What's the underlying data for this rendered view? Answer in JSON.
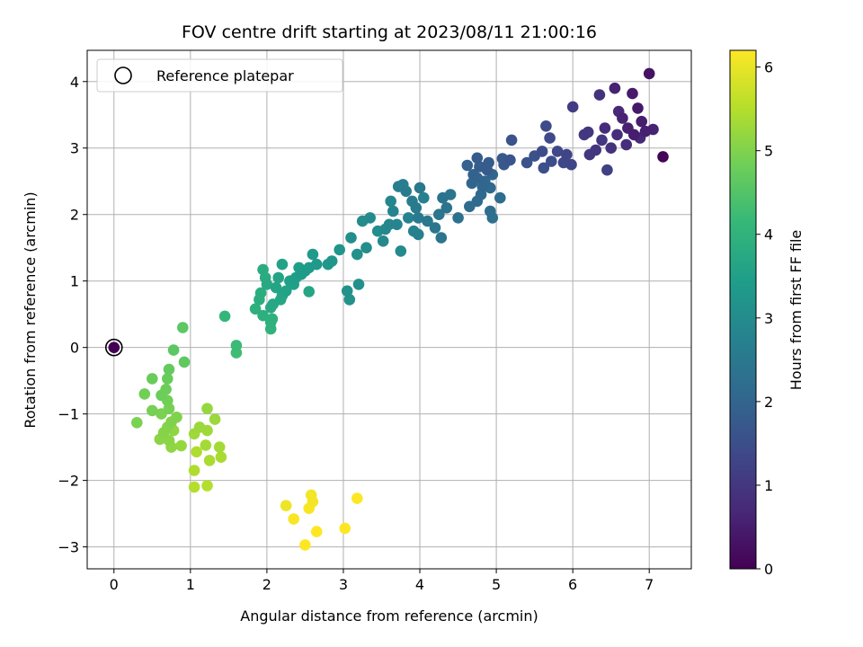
{
  "chart_data": {
    "type": "scatter",
    "title": "FOV centre drift starting at 2023/08/11 21:00:16",
    "xlabel": "Angular distance from reference (arcmin)",
    "ylabel": "Rotation from reference (arcmin)",
    "xlim": [
      -0.35,
      7.55
    ],
    "ylim": [
      -3.33,
      4.47
    ],
    "x_ticks": [
      0,
      1,
      2,
      3,
      4,
      5,
      6,
      7
    ],
    "x_tick_labels": [
      "0",
      "1",
      "2",
      "3",
      "4",
      "5",
      "6",
      "7"
    ],
    "y_ticks": [
      -3,
      -2,
      -1,
      0,
      1,
      2,
      3,
      4
    ],
    "y_tick_labels": [
      "−3",
      "−2",
      "−1",
      "0",
      "1",
      "2",
      "3",
      "4"
    ],
    "grid": true,
    "legend": {
      "position": "top-left",
      "entries": [
        {
          "label": "Reference platepar",
          "marker": "open-circle"
        }
      ]
    },
    "reference_point": {
      "x": 0,
      "y": 0,
      "t": 0
    },
    "colorbar": {
      "label": "Hours from first FF file",
      "colormap": "viridis",
      "range": [
        0,
        6.2
      ],
      "ticks": [
        0,
        1,
        2,
        3,
        4,
        5,
        6
      ],
      "tick_labels": [
        "0",
        "1",
        "2",
        "3",
        "4",
        "5",
        "6"
      ]
    },
    "series": [
      {
        "points": [
          [
            7.18,
            2.87,
            0.05
          ],
          [
            7.0,
            4.12,
            0.3
          ],
          [
            6.78,
            3.82,
            0.45
          ],
          [
            6.85,
            3.6,
            0.4
          ],
          [
            6.9,
            3.4,
            0.5
          ],
          [
            6.95,
            3.25,
            0.55
          ],
          [
            7.05,
            3.28,
            0.6
          ],
          [
            6.8,
            3.2,
            0.5
          ],
          [
            6.72,
            3.3,
            0.55
          ],
          [
            6.65,
            3.45,
            0.6
          ],
          [
            6.88,
            3.15,
            0.7
          ],
          [
            6.6,
            3.55,
            0.7
          ],
          [
            6.7,
            3.05,
            0.8
          ],
          [
            6.58,
            3.2,
            0.8
          ],
          [
            6.55,
            3.9,
            0.6
          ],
          [
            6.42,
            3.3,
            0.8
          ],
          [
            6.35,
            3.8,
            0.9
          ],
          [
            6.5,
            3.0,
            0.9
          ],
          [
            6.3,
            2.97,
            0.95
          ],
          [
            6.38,
            3.12,
            1.0
          ],
          [
            6.22,
            2.9,
            1.0
          ],
          [
            6.2,
            3.24,
            1.0
          ],
          [
            6.15,
            3.2,
            1.05
          ],
          [
            6.0,
            3.62,
            1.1
          ],
          [
            6.45,
            2.67,
            1.2
          ],
          [
            5.98,
            2.75,
            1.3
          ],
          [
            5.92,
            2.9,
            1.3
          ],
          [
            5.88,
            2.78,
            1.35
          ],
          [
            5.8,
            2.95,
            1.35
          ],
          [
            5.7,
            3.15,
            1.4
          ],
          [
            5.65,
            3.33,
            1.4
          ],
          [
            5.72,
            2.8,
            1.45
          ],
          [
            5.6,
            2.95,
            1.45
          ],
          [
            5.62,
            2.7,
            1.5
          ],
          [
            5.5,
            2.88,
            1.55
          ],
          [
            5.4,
            2.78,
            1.6
          ],
          [
            5.2,
            3.12,
            1.6
          ],
          [
            5.18,
            2.82,
            1.65
          ],
          [
            5.1,
            2.75,
            1.7
          ],
          [
            5.08,
            2.84,
            1.75
          ],
          [
            4.9,
            2.78,
            1.8
          ],
          [
            4.88,
            2.67,
            1.8
          ],
          [
            4.75,
            2.85,
            1.8
          ],
          [
            4.78,
            2.72,
            1.85
          ],
          [
            4.62,
            2.74,
            1.9
          ],
          [
            4.7,
            2.6,
            1.95
          ],
          [
            4.75,
            2.55,
            2.0
          ],
          [
            4.68,
            2.47,
            2.0
          ],
          [
            4.82,
            2.42,
            2.05
          ],
          [
            4.95,
            2.6,
            2.0
          ],
          [
            4.85,
            2.5,
            2.05
          ],
          [
            4.92,
            2.4,
            2.1
          ],
          [
            4.8,
            2.3,
            2.1
          ],
          [
            4.75,
            2.2,
            2.15
          ],
          [
            4.65,
            2.12,
            2.15
          ],
          [
            5.05,
            2.25,
            2.2
          ],
          [
            4.92,
            2.05,
            2.25
          ],
          [
            4.95,
            1.95,
            2.3
          ],
          [
            4.5,
            1.95,
            2.3
          ],
          [
            4.35,
            2.1,
            2.35
          ],
          [
            4.3,
            2.25,
            2.35
          ],
          [
            4.4,
            2.3,
            2.4
          ],
          [
            4.25,
            2.0,
            2.4
          ],
          [
            4.2,
            1.8,
            2.45
          ],
          [
            4.28,
            1.65,
            2.45
          ],
          [
            4.1,
            1.9,
            2.5
          ],
          [
            4.0,
            2.4,
            2.5
          ],
          [
            3.98,
            1.95,
            2.55
          ],
          [
            3.95,
            2.1,
            2.55
          ],
          [
            3.9,
            2.2,
            2.6
          ],
          [
            3.82,
            2.35,
            2.6
          ],
          [
            3.78,
            2.45,
            2.65
          ],
          [
            3.72,
            2.42,
            2.65
          ],
          [
            4.05,
            2.25,
            2.7
          ],
          [
            3.98,
            1.7,
            2.7
          ],
          [
            3.92,
            1.75,
            2.75
          ],
          [
            3.85,
            1.95,
            2.75
          ],
          [
            3.7,
            1.85,
            2.8
          ],
          [
            3.65,
            2.05,
            2.8
          ],
          [
            3.62,
            2.2,
            2.85
          ],
          [
            3.6,
            1.85,
            2.85
          ],
          [
            3.55,
            1.78,
            2.9
          ],
          [
            3.52,
            1.6,
            2.9
          ],
          [
            3.75,
            1.45,
            2.95
          ],
          [
            3.35,
            1.95,
            2.95
          ],
          [
            3.25,
            1.9,
            3.0
          ],
          [
            3.45,
            1.75,
            3.0
          ],
          [
            3.1,
            1.65,
            3.05
          ],
          [
            3.3,
            1.5,
            3.05
          ],
          [
            3.18,
            1.4,
            3.1
          ],
          [
            3.2,
            0.95,
            3.1
          ],
          [
            3.05,
            0.85,
            3.15
          ],
          [
            3.08,
            0.72,
            3.15
          ],
          [
            2.95,
            1.47,
            3.2
          ],
          [
            2.85,
            1.3,
            3.25
          ],
          [
            2.8,
            1.25,
            3.3
          ],
          [
            2.65,
            1.25,
            3.3
          ],
          [
            2.6,
            1.4,
            3.35
          ],
          [
            2.55,
            1.2,
            3.35
          ],
          [
            2.5,
            1.15,
            3.4
          ],
          [
            2.45,
            1.1,
            3.4
          ],
          [
            2.42,
            1.2,
            3.45
          ],
          [
            2.38,
            1.05,
            3.45
          ],
          [
            2.3,
            1.0,
            3.5
          ],
          [
            2.35,
            0.95,
            3.5
          ],
          [
            2.25,
            0.85,
            3.55
          ],
          [
            2.2,
            1.25,
            3.55
          ],
          [
            2.15,
            1.05,
            3.6
          ],
          [
            2.12,
            0.9,
            3.6
          ],
          [
            2.55,
            0.84,
            3.65
          ],
          [
            2.2,
            0.78,
            3.65
          ],
          [
            2.18,
            0.72,
            3.7
          ],
          [
            2.08,
            0.65,
            3.7
          ],
          [
            2.05,
            0.6,
            3.75
          ],
          [
            2.0,
            0.95,
            3.75
          ],
          [
            1.95,
            1.17,
            3.8
          ],
          [
            1.98,
            1.05,
            3.8
          ],
          [
            1.92,
            0.82,
            3.85
          ],
          [
            1.9,
            0.72,
            3.85
          ],
          [
            1.85,
            0.58,
            3.9
          ],
          [
            1.95,
            0.48,
            3.9
          ],
          [
            2.07,
            0.43,
            3.95
          ],
          [
            2.05,
            0.38,
            3.95
          ],
          [
            2.05,
            0.28,
            4.0
          ],
          [
            1.45,
            0.47,
            4.1
          ],
          [
            1.6,
            0.03,
            4.2
          ],
          [
            1.6,
            -0.08,
            4.25
          ],
          [
            0.9,
            0.3,
            4.6
          ],
          [
            0.78,
            -0.04,
            4.6
          ],
          [
            0.92,
            -0.22,
            4.65
          ],
          [
            0.72,
            -0.33,
            4.7
          ],
          [
            0.5,
            -0.47,
            4.75
          ],
          [
            0.7,
            -0.47,
            4.75
          ],
          [
            0.68,
            -0.63,
            4.8
          ],
          [
            0.62,
            -0.72,
            4.8
          ],
          [
            0.4,
            -0.7,
            4.85
          ],
          [
            0.7,
            -0.8,
            4.85
          ],
          [
            0.72,
            -0.92,
            4.9
          ],
          [
            0.5,
            -0.95,
            4.9
          ],
          [
            0.62,
            -1.0,
            4.95
          ],
          [
            0.3,
            -1.13,
            4.95
          ],
          [
            0.82,
            -1.05,
            5.0
          ],
          [
            0.75,
            -1.12,
            5.0
          ],
          [
            0.7,
            -1.2,
            5.05
          ],
          [
            0.65,
            -1.28,
            5.05
          ],
          [
            0.6,
            -1.38,
            5.1
          ],
          [
            0.72,
            -1.4,
            5.1
          ],
          [
            0.78,
            -1.25,
            5.15
          ],
          [
            0.75,
            -1.5,
            5.15
          ],
          [
            0.88,
            -1.48,
            5.2
          ],
          [
            1.22,
            -0.92,
            5.2
          ],
          [
            1.32,
            -1.08,
            5.25
          ],
          [
            1.12,
            -1.2,
            5.25
          ],
          [
            1.05,
            -1.3,
            5.3
          ],
          [
            1.22,
            -1.25,
            5.3
          ],
          [
            1.2,
            -1.47,
            5.35
          ],
          [
            1.38,
            -1.5,
            5.35
          ],
          [
            1.4,
            -1.65,
            5.4
          ],
          [
            1.25,
            -1.7,
            5.4
          ],
          [
            1.08,
            -1.57,
            5.45
          ],
          [
            1.05,
            -1.85,
            5.45
          ],
          [
            1.05,
            -2.1,
            5.5
          ],
          [
            1.22,
            -2.08,
            5.5
          ],
          [
            2.25,
            -2.38,
            6.05
          ],
          [
            2.58,
            -2.22,
            6.1
          ],
          [
            2.6,
            -2.32,
            6.1
          ],
          [
            2.55,
            -2.42,
            6.15
          ],
          [
            2.35,
            -2.58,
            6.15
          ],
          [
            2.65,
            -2.77,
            6.2
          ],
          [
            2.5,
            -2.97,
            6.2
          ],
          [
            3.02,
            -2.72,
            6.2
          ],
          [
            3.18,
            -2.27,
            6.2
          ],
          [
            0.0,
            0.0,
            0.0
          ]
        ]
      }
    ]
  }
}
